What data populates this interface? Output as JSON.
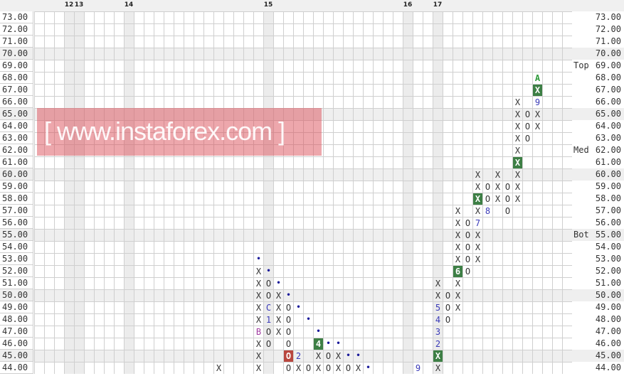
{
  "chart_data": {
    "type": "point-and-figure",
    "price_levels": [
      "73.00",
      "72.00",
      "71.00",
      "70.00",
      "69.00",
      "68.00",
      "67.00",
      "66.00",
      "65.00",
      "64.00",
      "63.00",
      "62.00",
      "61.00",
      "60.00",
      "59.00",
      "58.00",
      "57.00",
      "56.00",
      "55.00",
      "54.00",
      "53.00",
      "52.00",
      "51.00",
      "50.00",
      "49.00",
      "48.00",
      "47.00",
      "46.00",
      "45.00",
      "44.00"
    ],
    "ylim": [
      44,
      73
    ],
    "box_size": 1,
    "num_columns": 54,
    "grid": true,
    "shaded_every": 5,
    "column_markers": [
      {
        "label": "12",
        "column": 3
      },
      {
        "label": "13",
        "column": 4
      },
      {
        "label": "14",
        "column": 9
      },
      {
        "label": "15",
        "column": 23
      },
      {
        "label": "16",
        "column": 37
      },
      {
        "label": "17",
        "column": 40
      }
    ],
    "levels": [
      {
        "label": "Top",
        "price": 69
      },
      {
        "label": "Med",
        "price": 62
      },
      {
        "label": "Bot",
        "price": 55
      }
    ],
    "columns": [
      {
        "column": 18,
        "boxes": [
          [
            44,
            "X",
            ""
          ]
        ]
      },
      {
        "column": 22,
        "boxes": [
          [
            53,
            "•",
            "dot"
          ],
          [
            52,
            "X",
            ""
          ],
          [
            51,
            "X",
            ""
          ],
          [
            50,
            "X",
            ""
          ],
          [
            49,
            "X",
            ""
          ],
          [
            48,
            "X",
            ""
          ],
          [
            47,
            "B",
            "purple"
          ],
          [
            46,
            "X",
            ""
          ],
          [
            45,
            "X",
            ""
          ],
          [
            44,
            "X",
            ""
          ]
        ]
      },
      {
        "column": 23,
        "boxes": [
          [
            52,
            "•",
            "dot"
          ],
          [
            51,
            "O",
            ""
          ],
          [
            50,
            "O",
            ""
          ],
          [
            49,
            "C",
            "num"
          ],
          [
            48,
            "1",
            "num"
          ],
          [
            47,
            "O",
            ""
          ],
          [
            46,
            "O",
            ""
          ]
        ]
      },
      {
        "column": 24,
        "boxes": [
          [
            51,
            "•",
            "dot"
          ],
          [
            50,
            "X",
            ""
          ],
          [
            49,
            "X",
            ""
          ],
          [
            48,
            "X",
            ""
          ],
          [
            47,
            "X",
            ""
          ]
        ]
      },
      {
        "column": 25,
        "boxes": [
          [
            50,
            "•",
            "dot"
          ],
          [
            49,
            "O",
            ""
          ],
          [
            48,
            "O",
            ""
          ],
          [
            47,
            "O",
            ""
          ],
          [
            46,
            "O",
            ""
          ],
          [
            45,
            "O",
            "red"
          ],
          [
            44,
            "O",
            ""
          ]
        ]
      },
      {
        "column": 26,
        "boxes": [
          [
            49,
            "•",
            "dot"
          ],
          [
            45,
            "2",
            "num"
          ],
          [
            44,
            "X",
            ""
          ]
        ]
      },
      {
        "column": 27,
        "boxes": [
          [
            48,
            "•",
            "dot"
          ],
          [
            44,
            "O",
            ""
          ]
        ]
      },
      {
        "column": 28,
        "boxes": [
          [
            47,
            "•",
            "dot"
          ],
          [
            46,
            "4",
            "green"
          ],
          [
            45,
            "X",
            ""
          ],
          [
            44,
            "X",
            ""
          ]
        ]
      },
      {
        "column": 29,
        "boxes": [
          [
            46,
            "•",
            "dot"
          ],
          [
            45,
            "O",
            ""
          ],
          [
            44,
            "O",
            ""
          ]
        ]
      },
      {
        "column": 30,
        "boxes": [
          [
            46,
            "•",
            "dot"
          ],
          [
            45,
            "X",
            ""
          ],
          [
            44,
            "X",
            ""
          ]
        ]
      },
      {
        "column": 31,
        "boxes": [
          [
            45,
            "•",
            "dot"
          ],
          [
            44,
            "O",
            ""
          ]
        ]
      },
      {
        "column": 32,
        "boxes": [
          [
            45,
            "•",
            "dot"
          ],
          [
            44,
            "X",
            ""
          ]
        ]
      },
      {
        "column": 33,
        "boxes": [
          [
            44,
            "•",
            "dot"
          ]
        ]
      },
      {
        "column": 38,
        "boxes": [
          [
            44,
            "9",
            "num"
          ]
        ]
      },
      {
        "column": 40,
        "boxes": [
          [
            51,
            "X",
            ""
          ],
          [
            50,
            "X",
            ""
          ],
          [
            49,
            "5",
            "num"
          ],
          [
            48,
            "4",
            "num"
          ],
          [
            47,
            "3",
            "num"
          ],
          [
            46,
            "2",
            "num"
          ],
          [
            45,
            "X",
            "green"
          ],
          [
            44,
            "X",
            ""
          ]
        ]
      },
      {
        "column": 41,
        "boxes": [
          [
            50,
            "O",
            ""
          ],
          [
            49,
            "O",
            ""
          ],
          [
            48,
            "O",
            ""
          ]
        ]
      },
      {
        "column": 42,
        "boxes": [
          [
            57,
            "X",
            ""
          ],
          [
            56,
            "X",
            ""
          ],
          [
            55,
            "X",
            ""
          ],
          [
            54,
            "X",
            ""
          ],
          [
            53,
            "X",
            ""
          ],
          [
            52,
            "6",
            "green"
          ],
          [
            51,
            "X",
            ""
          ],
          [
            50,
            "X",
            ""
          ],
          [
            49,
            "X",
            ""
          ]
        ]
      },
      {
        "column": 43,
        "boxes": [
          [
            56,
            "O",
            ""
          ],
          [
            55,
            "O",
            ""
          ],
          [
            54,
            "O",
            ""
          ],
          [
            53,
            "O",
            ""
          ],
          [
            52,
            "O",
            ""
          ]
        ]
      },
      {
        "column": 44,
        "boxes": [
          [
            60,
            "X",
            ""
          ],
          [
            59,
            "X",
            ""
          ],
          [
            58,
            "X",
            "green"
          ],
          [
            57,
            "X",
            ""
          ],
          [
            56,
            "7",
            "num"
          ],
          [
            55,
            "X",
            ""
          ],
          [
            54,
            "X",
            ""
          ],
          [
            53,
            "X",
            ""
          ]
        ]
      },
      {
        "column": 45,
        "boxes": [
          [
            59,
            "O",
            ""
          ],
          [
            58,
            "O",
            ""
          ],
          [
            57,
            "8",
            "num"
          ]
        ]
      },
      {
        "column": 46,
        "boxes": [
          [
            60,
            "X",
            ""
          ],
          [
            59,
            "X",
            ""
          ],
          [
            58,
            "X",
            ""
          ]
        ]
      },
      {
        "column": 47,
        "boxes": [
          [
            59,
            "O",
            ""
          ],
          [
            58,
            "O",
            ""
          ],
          [
            57,
            "O",
            ""
          ]
        ]
      },
      {
        "column": 48,
        "boxes": [
          [
            66,
            "X",
            ""
          ],
          [
            65,
            "X",
            ""
          ],
          [
            64,
            "X",
            ""
          ],
          [
            63,
            "X",
            ""
          ],
          [
            62,
            "X",
            ""
          ],
          [
            61,
            "X",
            "green"
          ],
          [
            60,
            "X",
            ""
          ],
          [
            59,
            "X",
            ""
          ],
          [
            58,
            "X",
            ""
          ]
        ]
      },
      {
        "column": 49,
        "boxes": [
          [
            65,
            "O",
            ""
          ],
          [
            64,
            "O",
            ""
          ],
          [
            63,
            "O",
            ""
          ]
        ]
      },
      {
        "column": 50,
        "boxes": [
          [
            68,
            "A",
            "greentext"
          ],
          [
            67,
            "X",
            "green"
          ],
          [
            66,
            "9",
            "num"
          ],
          [
            65,
            "X",
            ""
          ],
          [
            64,
            "X",
            ""
          ]
        ]
      }
    ],
    "colors": {
      "grid": "#cfcfcf",
      "shade": "#efefef",
      "green_box": "#3d7f45",
      "red_box": "#b9473f",
      "month_digit": "#3a3ab8",
      "dot": "#1a1a9a"
    }
  },
  "watermark": "[ www.instaforex.com ]"
}
